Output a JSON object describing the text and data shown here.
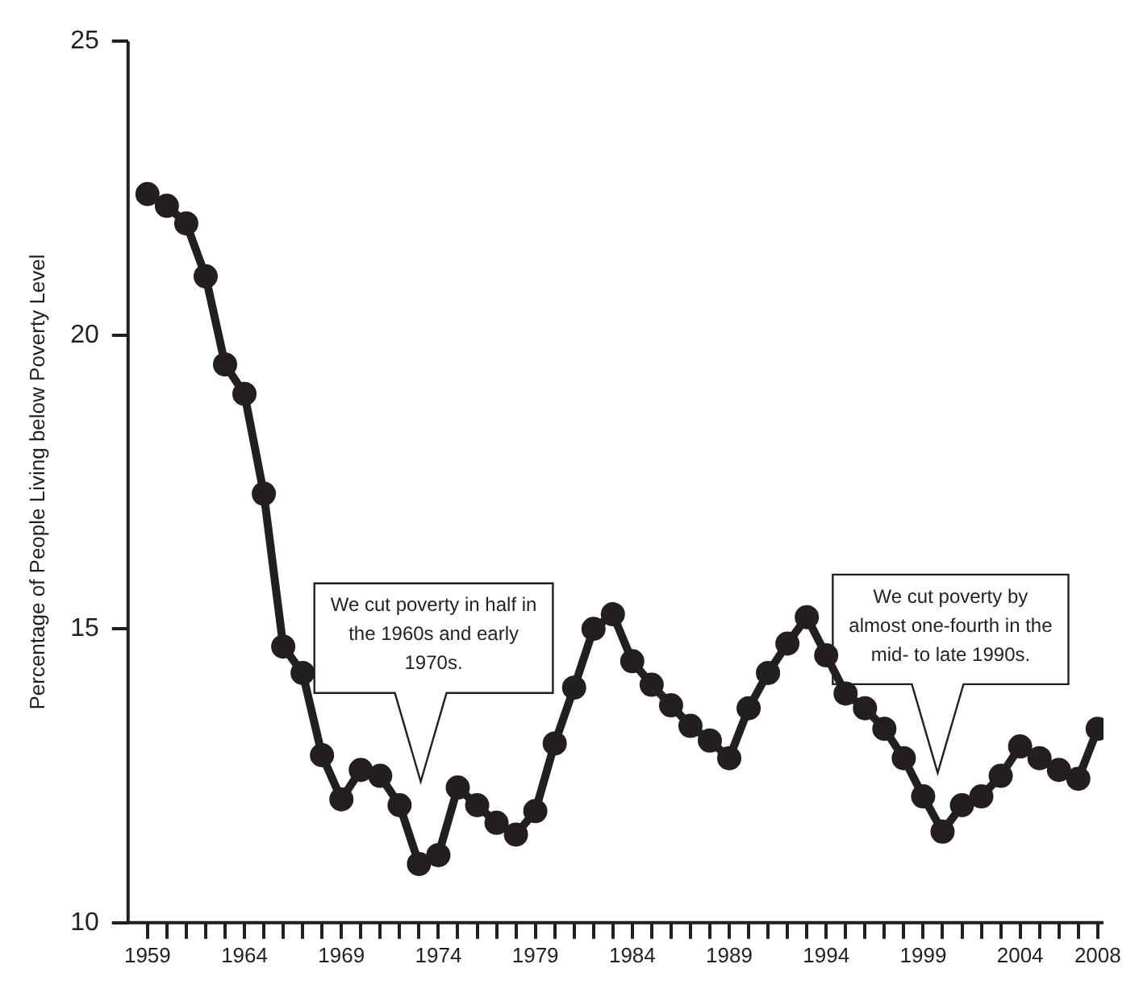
{
  "chart_data": {
    "type": "line",
    "ylabel": "Percentage of People Living below Poverty Level",
    "x": [
      1959,
      1960,
      1961,
      1962,
      1963,
      1964,
      1965,
      1966,
      1967,
      1968,
      1969,
      1970,
      1971,
      1972,
      1973,
      1974,
      1975,
      1976,
      1977,
      1978,
      1979,
      1980,
      1981,
      1982,
      1983,
      1984,
      1985,
      1986,
      1987,
      1988,
      1989,
      1990,
      1991,
      1992,
      1993,
      1994,
      1995,
      1996,
      1997,
      1998,
      1999,
      2000,
      2001,
      2002,
      2003,
      2004,
      2005,
      2006,
      2007,
      2008
    ],
    "series": [
      {
        "color": "#231f20",
        "values": [
          22.4,
          22.2,
          21.9,
          21.0,
          19.5,
          19.0,
          17.3,
          14.7,
          14.25,
          12.85,
          12.1,
          12.6,
          12.5,
          12.0,
          11.0,
          11.15,
          12.3,
          12.0,
          11.7,
          11.5,
          11.9,
          13.05,
          14.0,
          15.0,
          15.25,
          14.45,
          14.05,
          13.7,
          13.35,
          13.1,
          12.8,
          13.65,
          14.25,
          14.75,
          15.2,
          14.55,
          13.9,
          13.65,
          13.3,
          12.8,
          12.15,
          11.55,
          12.0,
          12.15,
          12.5,
          13.0,
          12.8,
          12.6,
          12.45,
          13.3
        ]
      }
    ],
    "xlim": [
      1958,
      2008.3
    ],
    "xticks": [
      1959,
      {
        "value": 1960,
        "label": null
      },
      {
        "value": 1961,
        "label": null
      },
      {
        "value": 1962,
        "label": null
      },
      {
        "value": 1963,
        "label": null
      },
      1964,
      {
        "value": 1965,
        "label": null
      },
      {
        "value": 1966,
        "label": null
      },
      {
        "value": 1967,
        "label": null
      },
      {
        "value": 1968,
        "label": null
      },
      1969,
      {
        "value": 1970,
        "label": null
      },
      {
        "value": 1971,
        "label": null
      },
      {
        "value": 1972,
        "label": null
      },
      {
        "value": 1973,
        "label": null
      },
      1974,
      {
        "value": 1975,
        "label": null
      },
      {
        "value": 1976,
        "label": null
      },
      {
        "value": 1977,
        "label": null
      },
      {
        "value": 1978,
        "label": null
      },
      1979,
      {
        "value": 1980,
        "label": null
      },
      {
        "value": 1981,
        "label": null
      },
      {
        "value": 1982,
        "label": null
      },
      {
        "value": 1983,
        "label": null
      },
      1984,
      {
        "value": 1985,
        "label": null
      },
      {
        "value": 1986,
        "label": null
      },
      {
        "value": 1987,
        "label": null
      },
      {
        "value": 1988,
        "label": null
      },
      1989,
      {
        "value": 1990,
        "label": null
      },
      {
        "value": 1991,
        "label": null
      },
      {
        "value": 1992,
        "label": null
      },
      {
        "value": 1993,
        "label": null
      },
      1994,
      {
        "value": 1995,
        "label": null
      },
      {
        "value": 1996,
        "label": null
      },
      {
        "value": 1997,
        "label": null
      },
      {
        "value": 1998,
        "label": null
      },
      1999,
      {
        "value": 2000,
        "label": null
      },
      {
        "value": 2001,
        "label": null
      },
      {
        "value": 2002,
        "label": null
      },
      {
        "value": 2003,
        "label": null
      },
      2004,
      {
        "value": 2005,
        "label": null
      },
      {
        "value": 2006,
        "label": null
      },
      {
        "value": 2007,
        "label": null
      },
      2008
    ],
    "ylim": [
      10,
      25
    ],
    "yticks": [
      10,
      15,
      20,
      25
    ],
    "grid": false,
    "legend": false,
    "marker": "circle",
    "line_style": "solid",
    "annotations": [
      "We cut poverty in half in the 1960s and early 1970s.",
      "We cut poverty by almost one-fourth in the mid- to late 1990s."
    ]
  }
}
